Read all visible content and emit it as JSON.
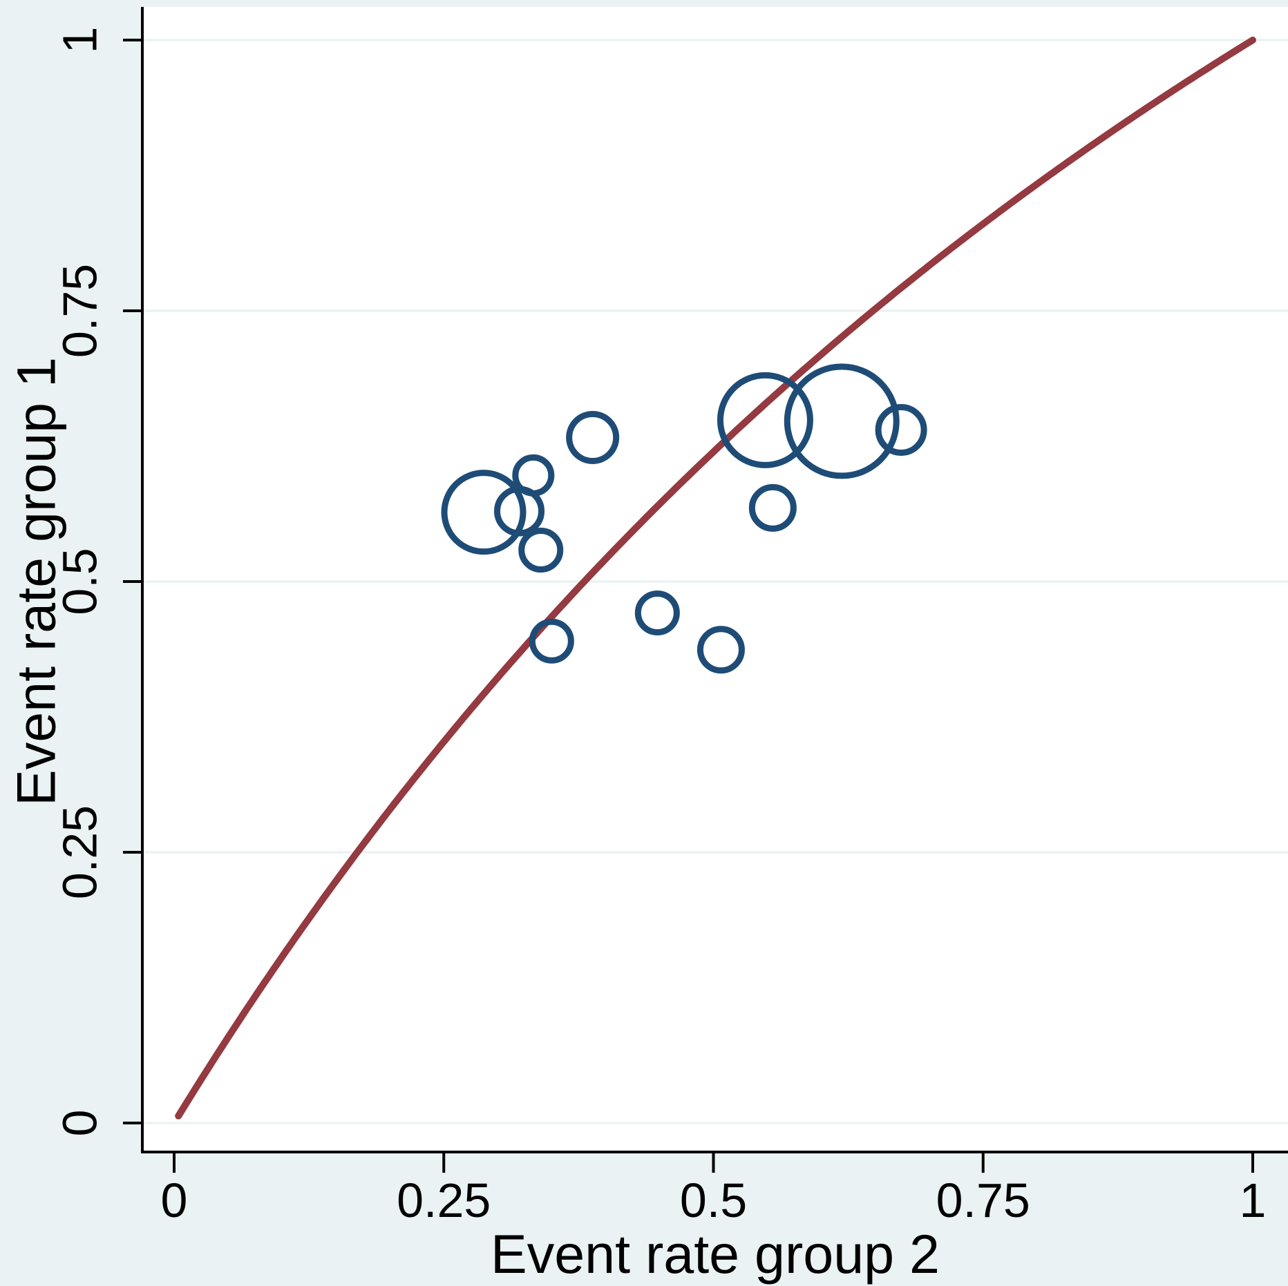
{
  "figure": {
    "kind": "labbe-plot",
    "title": ""
  },
  "chart_data": {
    "type": "scatter",
    "subtype": "bubble-labbe-plot",
    "title": "",
    "xlabel": "Event rate group 2",
    "ylabel": "Event rate group 1",
    "xlim": [
      0,
      1
    ],
    "ylim": [
      0,
      1
    ],
    "xticks": {
      "values": [
        0,
        0.25,
        0.5,
        0.75,
        1
      ],
      "labels": [
        "0",
        "0.25",
        "0.5",
        "0.75",
        "1"
      ]
    },
    "yticks": {
      "values": [
        0,
        0.25,
        0.5,
        0.75,
        1
      ],
      "labels": [
        "0",
        "0.25",
        "0.5",
        "0.75",
        "1"
      ]
    },
    "grid": "horizontal-only",
    "legend_position": "none",
    "series": [
      {
        "name": "study-bubbles",
        "type": "bubble",
        "marker": "circle-outline",
        "points": [
          {
            "x": 0.287,
            "y": 0.564,
            "r": 57
          },
          {
            "x": 0.32,
            "y": 0.565,
            "r": 32
          },
          {
            "x": 0.333,
            "y": 0.598,
            "r": 26
          },
          {
            "x": 0.34,
            "y": 0.529,
            "r": 28
          },
          {
            "x": 0.388,
            "y": 0.633,
            "r": 34
          },
          {
            "x": 0.35,
            "y": 0.445,
            "r": 28
          },
          {
            "x": 0.448,
            "y": 0.471,
            "r": 28
          },
          {
            "x": 0.507,
            "y": 0.437,
            "r": 30
          },
          {
            "x": 0.548,
            "y": 0.649,
            "r": 65
          },
          {
            "x": 0.619,
            "y": 0.648,
            "r": 79
          },
          {
            "x": 0.674,
            "y": 0.64,
            "r": 33
          },
          {
            "x": 0.555,
            "y": 0.568,
            "r": 30
          }
        ]
      },
      {
        "name": "summary-odds-ratio-curve",
        "type": "line",
        "model": "odds-ratio",
        "odds_ratio": 1.63,
        "x_start": 0.004,
        "x_end": 1.0
      }
    ],
    "colors": {
      "figure_background": "#eaf2f3",
      "plot_background": "#ffffff",
      "gridline": "#e9f1f2",
      "axis": "#000000",
      "bubble_stroke": "#1e4c77",
      "curve": "#943a40",
      "text": "#000000"
    }
  }
}
